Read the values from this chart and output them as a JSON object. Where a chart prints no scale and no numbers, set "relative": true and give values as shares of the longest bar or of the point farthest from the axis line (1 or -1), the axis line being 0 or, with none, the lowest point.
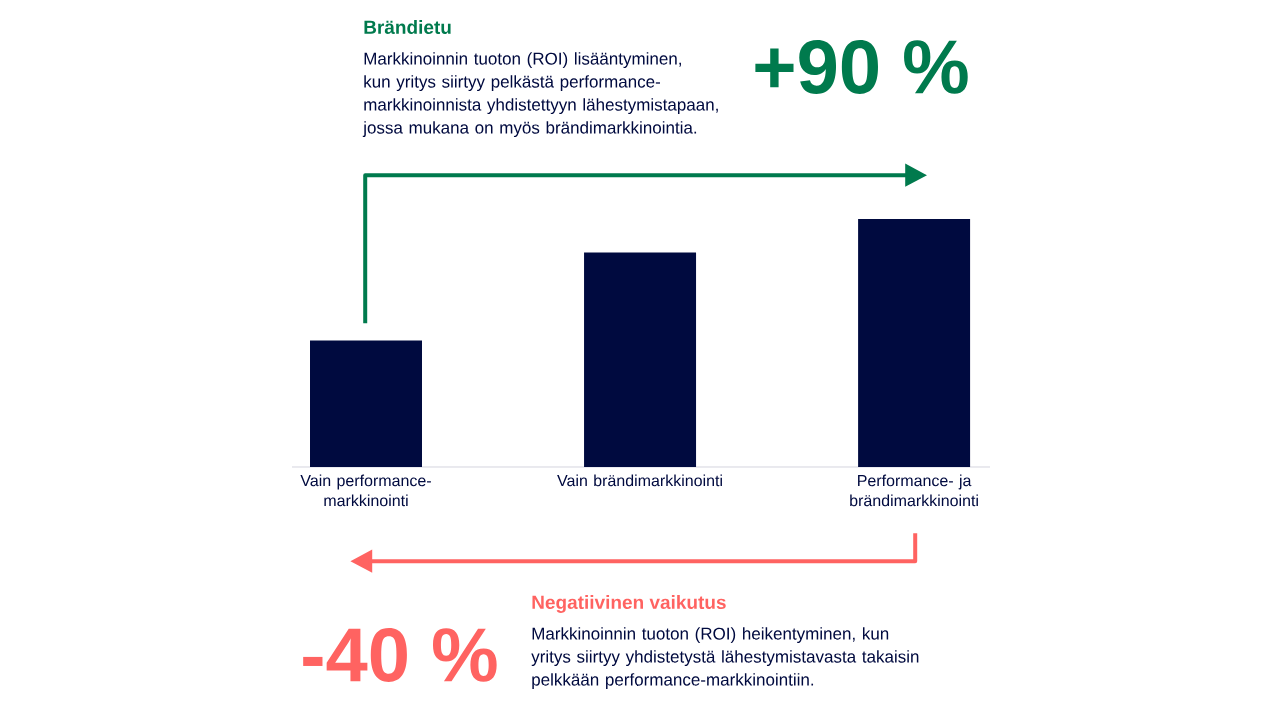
{
  "chart_data": {
    "type": "bar",
    "relative": true,
    "categories": [
      "Vain performance-markkinointi",
      "Vain brändimarkkinointi",
      "Performance- ja brändimarkkinointi"
    ],
    "values": [
      0.51,
      0.865,
      1
    ],
    "color": "#000a3f",
    "annotations": [
      "Brändietu",
      "Markkinoinnin tuoton (ROI) lisääntyminen, kun yritys siirtyy pelkästä performance-markkinoinnista yhdistettyyn lähestymistapaan, jossa mukana on myös brändimarkkinointia.",
      "+90 %",
      "Negatiivinen vaikutus",
      "Markkinoinnin tuoton (ROI) heikentyminen, kun yritys siirtyy yhdistetystä lähestymistavasta takaisin pelkkään performance-markkinointiin.",
      "-40 %"
    ]
  }
}
